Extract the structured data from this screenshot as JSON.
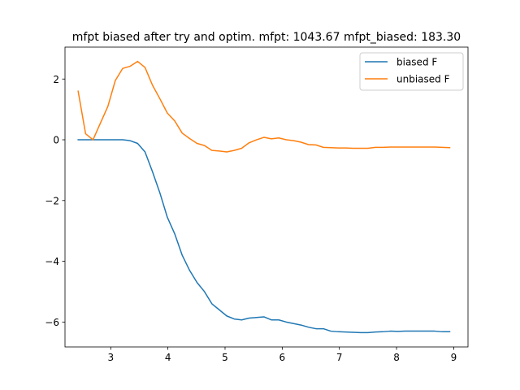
{
  "chart_data": {
    "type": "line",
    "title": "mfpt biased after try and optim. mfpt: 1043.67 mfpt_biased: 183.30",
    "xlabel": "",
    "ylabel": "",
    "xlim": [
      2.2,
      9.25
    ],
    "ylim": [
      -6.82,
      3.05
    ],
    "xticks": [
      3,
      4,
      5,
      6,
      7,
      8,
      9
    ],
    "yticks": [
      -6,
      -4,
      -2,
      0,
      2
    ],
    "xtick_labels": [
      "3",
      "4",
      "5",
      "6",
      "7",
      "8",
      "9"
    ],
    "ytick_labels": [
      "−6",
      "−4",
      "−2",
      "0",
      "2"
    ],
    "grid": false,
    "legend_position": "top-right",
    "series": [
      {
        "name": "biased F",
        "color": "#1f77b4",
        "x": [
          2.43,
          2.56,
          2.69,
          2.82,
          2.95,
          3.08,
          3.21,
          3.34,
          3.47,
          3.6,
          3.73,
          3.86,
          3.99,
          4.12,
          4.25,
          4.38,
          4.51,
          4.64,
          4.77,
          4.9,
          5.03,
          5.16,
          5.29,
          5.42,
          5.55,
          5.68,
          5.81,
          5.94,
          6.07,
          6.2,
          6.33,
          6.46,
          6.59,
          6.72,
          6.85,
          6.98,
          7.11,
          7.24,
          7.37,
          7.5,
          7.63,
          7.76,
          7.89,
          8.02,
          8.15,
          8.28,
          8.41,
          8.54,
          8.67,
          8.8,
          8.93
        ],
        "y": [
          0.0,
          0.0,
          0.0,
          0.0,
          0.0,
          0.0,
          0.0,
          -0.03,
          -0.12,
          -0.4,
          -1.05,
          -1.75,
          -2.55,
          -3.1,
          -3.8,
          -4.3,
          -4.7,
          -5.0,
          -5.4,
          -5.6,
          -5.8,
          -5.9,
          -5.93,
          -5.87,
          -5.85,
          -5.83,
          -5.93,
          -5.93,
          -6.0,
          -6.05,
          -6.1,
          -6.17,
          -6.22,
          -6.22,
          -6.3,
          -6.32,
          -6.33,
          -6.34,
          -6.35,
          -6.35,
          -6.33,
          -6.32,
          -6.3,
          -6.31,
          -6.3,
          -6.3,
          -6.3,
          -6.3,
          -6.3,
          -6.32,
          -6.32
        ]
      },
      {
        "name": "unbiased F",
        "color": "#ff7f0e",
        "x": [
          2.43,
          2.56,
          2.69,
          2.82,
          2.95,
          3.08,
          3.21,
          3.34,
          3.47,
          3.6,
          3.73,
          3.86,
          3.99,
          4.12,
          4.25,
          4.38,
          4.51,
          4.64,
          4.77,
          4.9,
          5.03,
          5.16,
          5.29,
          5.42,
          5.55,
          5.68,
          5.81,
          5.94,
          6.07,
          6.2,
          6.33,
          6.46,
          6.59,
          6.72,
          6.85,
          6.98,
          7.11,
          7.24,
          7.37,
          7.5,
          7.63,
          7.76,
          7.89,
          8.02,
          8.15,
          8.28,
          8.41,
          8.54,
          8.67,
          8.8,
          8.93
        ],
        "y": [
          1.6,
          0.2,
          0.0,
          0.55,
          1.1,
          1.95,
          2.35,
          2.42,
          2.58,
          2.38,
          1.8,
          1.35,
          0.88,
          0.62,
          0.22,
          0.04,
          -0.12,
          -0.19,
          -0.35,
          -0.37,
          -0.4,
          -0.35,
          -0.28,
          -0.1,
          0.0,
          0.08,
          0.03,
          0.06,
          0.0,
          -0.03,
          -0.08,
          -0.16,
          -0.17,
          -0.25,
          -0.26,
          -0.27,
          -0.27,
          -0.28,
          -0.28,
          -0.28,
          -0.25,
          -0.25,
          -0.24,
          -0.24,
          -0.24,
          -0.24,
          -0.24,
          -0.24,
          -0.24,
          -0.25,
          -0.26
        ]
      }
    ]
  }
}
